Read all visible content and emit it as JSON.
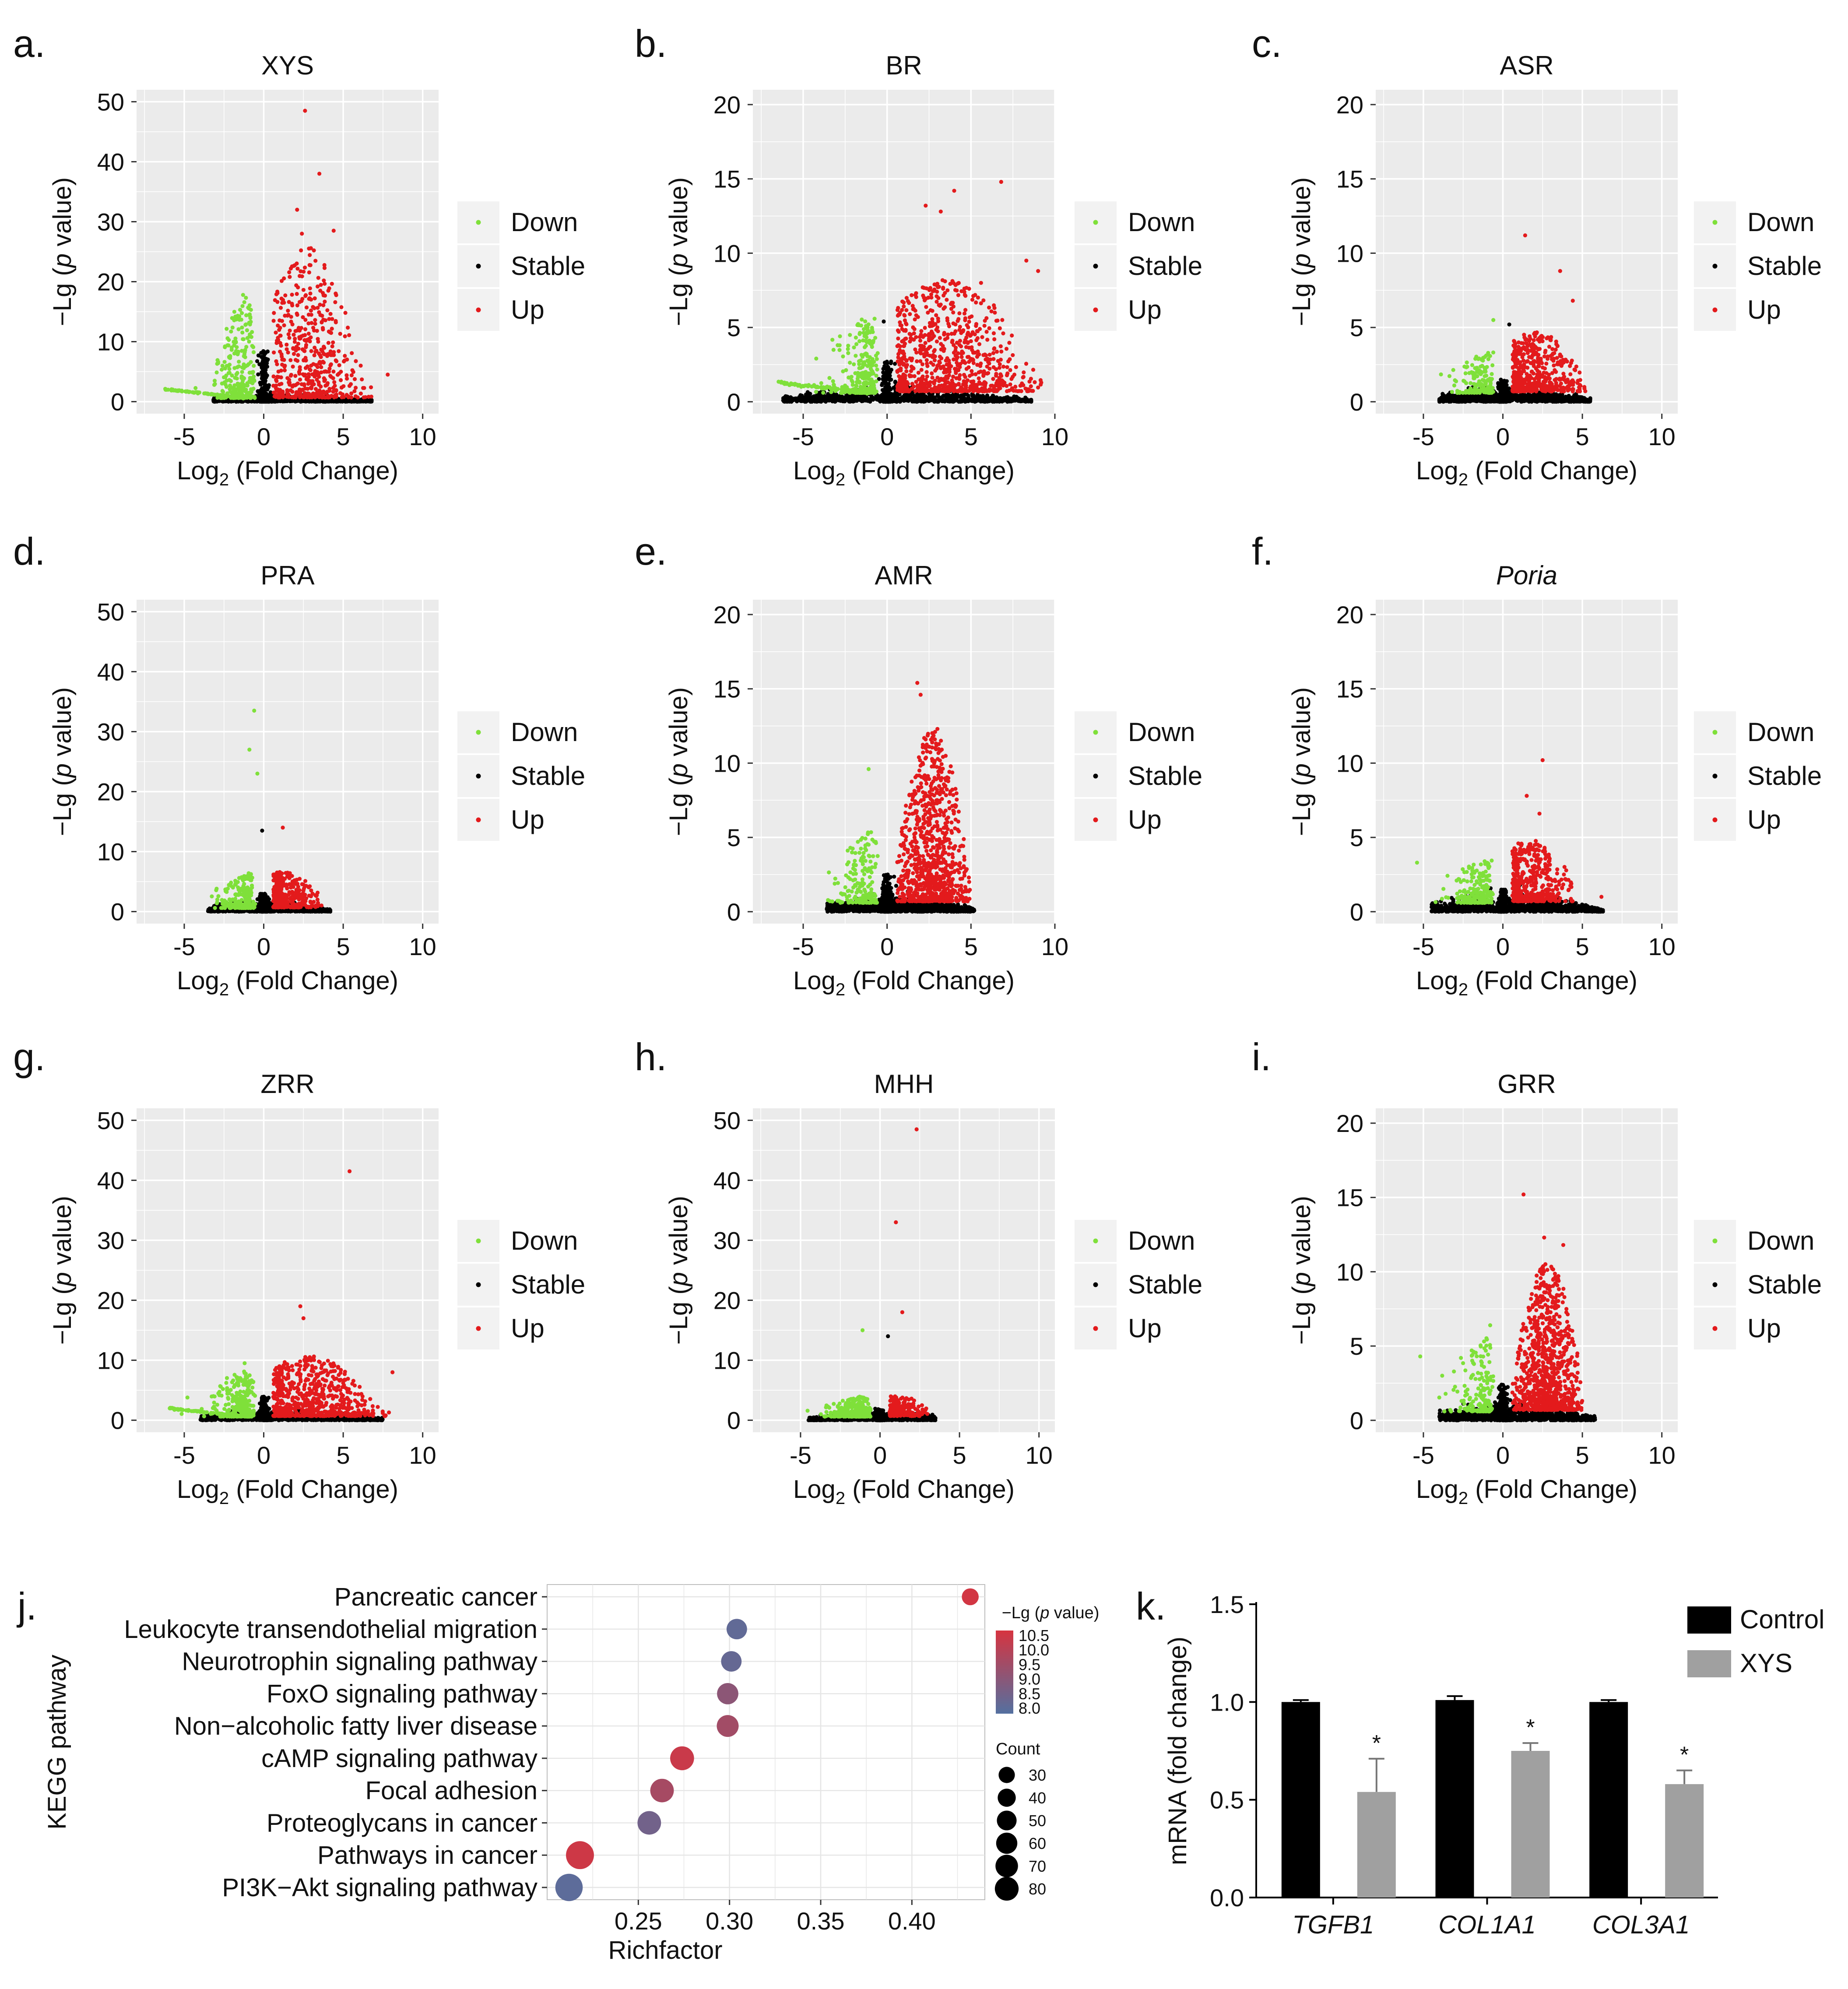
{
  "chart_data": [
    {
      "type": "scatter",
      "panel_label": "a.",
      "title": "XYS",
      "title_italic": false,
      "xlabel": "Log2 (Fold Change)",
      "ylabel": "−Lg (p value)",
      "xlim": [
        -8,
        11
      ],
      "ylim": [
        -2,
        52
      ],
      "xticks": [
        -5,
        0,
        5,
        10
      ],
      "yticks": [
        0,
        10,
        20,
        30,
        40,
        50
      ],
      "legend": [
        "Down",
        "Stable",
        "Up"
      ],
      "shape": {
        "down_xmin": -6.2,
        "up_xmax": 8.2,
        "up_peak": 25,
        "down_peak": 17,
        "up_center": 2.8,
        "up_width": 1.5,
        "stable_left": -3.2,
        "stable_right": 6.8,
        "stable_max": 1.2,
        "green_tail": true,
        "down_density": 1.0,
        "up_density": 1.0
      },
      "highlights": [
        [
          2.6,
          48.5
        ],
        [
          3.5,
          38
        ],
        [
          2.1,
          32
        ],
        [
          4.4,
          28.5
        ],
        [
          2.4,
          28
        ],
        [
          -1.3,
          17.8
        ],
        [
          6.1,
          6
        ],
        [
          7.8,
          4.5
        ]
      ]
    },
    {
      "type": "scatter",
      "panel_label": "b.",
      "title": "BR",
      "title_italic": false,
      "xlabel": "Log2 (Fold Change)",
      "ylabel": "−Lg (p value)",
      "xlim": [
        -8,
        10
      ],
      "ylim": [
        -0.8,
        21
      ],
      "xticks": [
        -5,
        0,
        5,
        10
      ],
      "yticks": [
        0,
        5,
        10,
        15,
        20
      ],
      "legend": [
        "Down",
        "Stable",
        "Up"
      ],
      "shape": {
        "down_xmin": -6.5,
        "up_xmax": 9.2,
        "up_peak": 7.5,
        "down_peak": 5.5,
        "up_center": 3.5,
        "up_width": 2.5,
        "stable_left": -6.2,
        "stable_right": 8.6,
        "stable_max": 1.0,
        "green_tail": true,
        "down_density": 1.0,
        "up_density": 1.6
      },
      "highlights": [
        [
          6.8,
          14.8
        ],
        [
          4.0,
          14.2
        ],
        [
          2.3,
          13.2
        ],
        [
          3.2,
          12.8
        ],
        [
          8.3,
          9.5
        ],
        [
          9.0,
          8.8
        ],
        [
          5.6,
          8.0
        ],
        [
          -0.2,
          5.4
        ]
      ]
    },
    {
      "type": "scatter",
      "panel_label": "c.",
      "title": "ASR",
      "title_italic": false,
      "xlabel": "Log2 (Fold Change)",
      "ylabel": "−Lg (p value)",
      "xlim": [
        -8,
        11
      ],
      "ylim": [
        -0.8,
        21
      ],
      "xticks": [
        -5,
        0,
        5,
        10
      ],
      "yticks": [
        0,
        5,
        10,
        15,
        20
      ],
      "legend": [
        "Down",
        "Stable",
        "Up"
      ],
      "shape": {
        "down_xmin": -4.2,
        "up_xmax": 5.2,
        "up_peak": 4.0,
        "down_peak": 3.0,
        "up_center": 2.0,
        "up_width": 1.5,
        "stable_left": -4.0,
        "stable_right": 5.5,
        "stable_max": 1.0,
        "green_tail": false,
        "down_density": 0.6,
        "up_density": 1.0
      },
      "highlights": [
        [
          1.4,
          11.2
        ],
        [
          3.6,
          8.8
        ],
        [
          -0.6,
          5.5
        ],
        [
          4.4,
          6.8
        ],
        [
          0.4,
          5.2
        ]
      ]
    },
    {
      "type": "scatter",
      "panel_label": "d.",
      "title": "PRA",
      "title_italic": false,
      "xlabel": "Log2 (Fold Change)",
      "ylabel": "−Lg (p value)",
      "xlim": [
        -8,
        11
      ],
      "ylim": [
        -2,
        52
      ],
      "xticks": [
        -5,
        0,
        5,
        10
      ],
      "yticks": [
        0,
        10,
        20,
        30,
        40,
        50
      ],
      "legend": [
        "Down",
        "Stable",
        "Up"
      ],
      "shape": {
        "down_xmin": -3.4,
        "up_xmax": 3.8,
        "up_peak": 6.0,
        "down_peak": 6.0,
        "up_center": 1.2,
        "up_width": 1.2,
        "stable_left": -3.5,
        "stable_right": 4.2,
        "stable_max": 1.8,
        "green_tail": false,
        "down_density": 0.8,
        "up_density": 0.7
      },
      "highlights": [
        [
          -0.6,
          33.5
        ],
        [
          -0.9,
          27
        ],
        [
          -0.4,
          23
        ],
        [
          -0.1,
          13.5
        ],
        [
          1.2,
          14
        ]
      ]
    },
    {
      "type": "scatter",
      "panel_label": "e.",
      "title": "AMR",
      "title_italic": false,
      "xlabel": "Log2 (Fold Change)",
      "ylabel": "−Lg (p value)",
      "xlim": [
        -8,
        10
      ],
      "ylim": [
        -0.8,
        21
      ],
      "xticks": [
        -5,
        0,
        5,
        10
      ],
      "yticks": [
        0,
        5,
        10,
        15,
        20
      ],
      "legend": [
        "Down",
        "Stable",
        "Up"
      ],
      "shape": {
        "down_xmin": -3.6,
        "up_xmax": 5.0,
        "up_peak": 11.5,
        "down_peak": 5.0,
        "up_center": 2.7,
        "up_width": 1.0,
        "stable_left": -3.6,
        "stable_right": 5.2,
        "stable_max": 1.2,
        "green_tail": false,
        "down_density": 0.7,
        "up_density": 1.8
      },
      "highlights": [
        [
          1.8,
          15.4
        ],
        [
          2.0,
          14.6
        ],
        [
          3.0,
          12.3
        ],
        [
          -1.1,
          9.6
        ],
        [
          2.3,
          11.6
        ]
      ]
    },
    {
      "type": "scatter",
      "panel_label": "f.",
      "title": "Poria",
      "title_italic": true,
      "xlabel": "Log2 (Fold Change)",
      "ylabel": "−Lg (p value)",
      "xlim": [
        -8,
        11
      ],
      "ylim": [
        -0.8,
        21
      ],
      "xticks": [
        -5,
        0,
        5,
        10
      ],
      "yticks": [
        0,
        5,
        10,
        15,
        20
      ],
      "legend": [
        "Down",
        "Stable",
        "Up"
      ],
      "shape": {
        "down_xmin": -5.5,
        "up_xmax": 4.5,
        "up_peak": 4.2,
        "down_peak": 3.0,
        "up_center": 1.8,
        "up_width": 1.3,
        "stable_left": -4.5,
        "stable_right": 6.3,
        "stable_max": 1.2,
        "green_tail": false,
        "down_density": 0.8,
        "up_density": 0.9
      },
      "highlights": [
        [
          2.5,
          10.2
        ],
        [
          1.5,
          7.8
        ],
        [
          2.3,
          6.6
        ],
        [
          -5.4,
          3.3
        ],
        [
          6.2,
          1.0
        ]
      ]
    },
    {
      "type": "scatter",
      "panel_label": "g.",
      "title": "ZRR",
      "title_italic": false,
      "xlabel": "Log2 (Fold Change)",
      "ylabel": "−Lg (p value)",
      "xlim": [
        -8,
        11
      ],
      "ylim": [
        -2,
        52
      ],
      "xticks": [
        -5,
        0,
        5,
        10
      ],
      "yticks": [
        0,
        10,
        20,
        30,
        40,
        50
      ],
      "legend": [
        "Down",
        "Stable",
        "Up"
      ],
      "shape": {
        "down_xmin": -6.0,
        "up_xmax": 8.2,
        "up_peak": 10.0,
        "down_peak": 8.0,
        "up_center": 2.8,
        "up_width": 2.0,
        "stable_left": -4.0,
        "stable_right": 7.5,
        "stable_max": 1.5,
        "green_tail": true,
        "down_density": 1.0,
        "up_density": 1.4
      },
      "highlights": [
        [
          5.4,
          41.5
        ],
        [
          2.3,
          19
        ],
        [
          2.5,
          17
        ],
        [
          8.1,
          8
        ],
        [
          -1.2,
          9.5
        ]
      ]
    },
    {
      "type": "scatter",
      "panel_label": "h.",
      "title": "MHH",
      "title_italic": false,
      "xlabel": "Log2 (Fold Change)",
      "ylabel": "−Lg (p value)",
      "xlim": [
        -8,
        11
      ],
      "ylim": [
        -2,
        52
      ],
      "xticks": [
        -5,
        0,
        5,
        10
      ],
      "yticks": [
        0,
        10,
        20,
        30,
        40,
        50
      ],
      "legend": [
        "Down",
        "Stable",
        "Up"
      ],
      "shape": {
        "down_xmin": -4.8,
        "up_xmax": 3.0,
        "up_peak": 3.5,
        "down_peak": 3.5,
        "up_center": 1.0,
        "up_width": 1.0,
        "stable_left": -4.5,
        "stable_right": 3.5,
        "stable_max": 1.5,
        "green_tail": false,
        "down_density": 1.0,
        "up_density": 0.4
      },
      "highlights": [
        [
          2.3,
          48.5
        ],
        [
          1.0,
          33
        ],
        [
          1.4,
          18
        ],
        [
          -1.1,
          15
        ],
        [
          0.5,
          14
        ]
      ]
    },
    {
      "type": "scatter",
      "panel_label": "i.",
      "title": "GRR",
      "title_italic": false,
      "xlabel": "Log2 (Fold Change)",
      "ylabel": "−Lg (p value)",
      "xlim": [
        -8,
        11
      ],
      "ylim": [
        -0.8,
        21
      ],
      "xticks": [
        -5,
        0,
        5,
        10
      ],
      "yticks": [
        0,
        5,
        10,
        15,
        20
      ],
      "legend": [
        "Down",
        "Stable",
        "Up"
      ],
      "shape": {
        "down_xmin": -5.2,
        "up_xmax": 5.0,
        "up_peak": 10.0,
        "down_peak": 5.0,
        "up_center": 2.8,
        "up_width": 1.0,
        "stable_left": -4.0,
        "stable_right": 5.8,
        "stable_max": 1.2,
        "green_tail": false,
        "down_density": 0.7,
        "up_density": 1.8
      },
      "highlights": [
        [
          1.3,
          15.2
        ],
        [
          2.6,
          12.3
        ],
        [
          3.8,
          11.8
        ],
        [
          -5.2,
          4.3
        ],
        [
          -0.8,
          6.4
        ]
      ]
    },
    {
      "type": "bubble",
      "panel_label": "j.",
      "ylabel": "KEGG pathway",
      "xlabel": "Richfactor",
      "xlim": [
        0.2,
        0.44
      ],
      "xticks": [
        0.25,
        0.3,
        0.35,
        0.4
      ],
      "xtick_labels": [
        "0.25",
        "0.30",
        "0.35",
        "0.40"
      ],
      "colorbar_title": "−Lg (p value)",
      "colorbar_ticks": [
        "10.5",
        "10.0",
        "9.5",
        "9.0",
        "8.5",
        "8.0"
      ],
      "colorbar_range": [
        7.8,
        10.8
      ],
      "count_title": "Count",
      "count_legend": [
        30,
        40,
        50,
        60,
        70,
        80
      ],
      "pathways": [
        {
          "name": "Pancreatic cancer",
          "richfactor": 0.432,
          "neglogp": 10.7,
          "count": 21
        },
        {
          "name": "Leukocyte transendothelial migration",
          "richfactor": 0.304,
          "neglogp": 8.1,
          "count": 36
        },
        {
          "name": "Neurotrophin signaling pathway",
          "richfactor": 0.301,
          "neglogp": 8.2,
          "count": 36
        },
        {
          "name": "FoxO signaling pathway",
          "richfactor": 0.299,
          "neglogp": 9.1,
          "count": 40
        },
        {
          "name": "Non−alcoholic fatty liver disease",
          "richfactor": 0.299,
          "neglogp": 9.6,
          "count": 43
        },
        {
          "name": "cAMP signaling pathway",
          "richfactor": 0.274,
          "neglogp": 10.5,
          "count": 54
        },
        {
          "name": "Focal adhesion",
          "richfactor": 0.263,
          "neglogp": 9.7,
          "count": 52
        },
        {
          "name": "Proteoglycans in cancer",
          "richfactor": 0.256,
          "neglogp": 8.5,
          "count": 52
        },
        {
          "name": "Pathways in cancer",
          "richfactor": 0.218,
          "neglogp": 10.6,
          "count": 80
        },
        {
          "name": "PI3K−Akt signaling pathway",
          "richfactor": 0.212,
          "neglogp": 8.0,
          "count": 76
        }
      ]
    },
    {
      "type": "bar",
      "panel_label": "k.",
      "ylabel": "mRNA (fold change)",
      "ylim": [
        0,
        1.5
      ],
      "yticks": [
        0.0,
        0.5,
        1.0,
        1.5
      ],
      "ytick_labels": [
        "0.0",
        "0.5",
        "1.0",
        "1.5"
      ],
      "categories": [
        "TGFB1",
        "COL1A1",
        "COL3A1"
      ],
      "series": [
        {
          "name": "Control",
          "color": "#000000",
          "values": [
            1.0,
            1.01,
            1.0
          ],
          "errors": [
            0.01,
            0.02,
            0.01
          ]
        },
        {
          "name": "XYS",
          "color": "#a0a0a0",
          "values": [
            0.54,
            0.75,
            0.58
          ],
          "errors": [
            0.17,
            0.04,
            0.07
          ]
        }
      ],
      "significance": [
        "*",
        "*",
        "*"
      ]
    }
  ],
  "colors": {
    "down": "#7fe03a",
    "stable": "#000000",
    "up": "#e31a1c",
    "panel_bg": "#ebebeb",
    "grid": "#ffffff",
    "legend_key_bg": "#f2f2f2"
  }
}
